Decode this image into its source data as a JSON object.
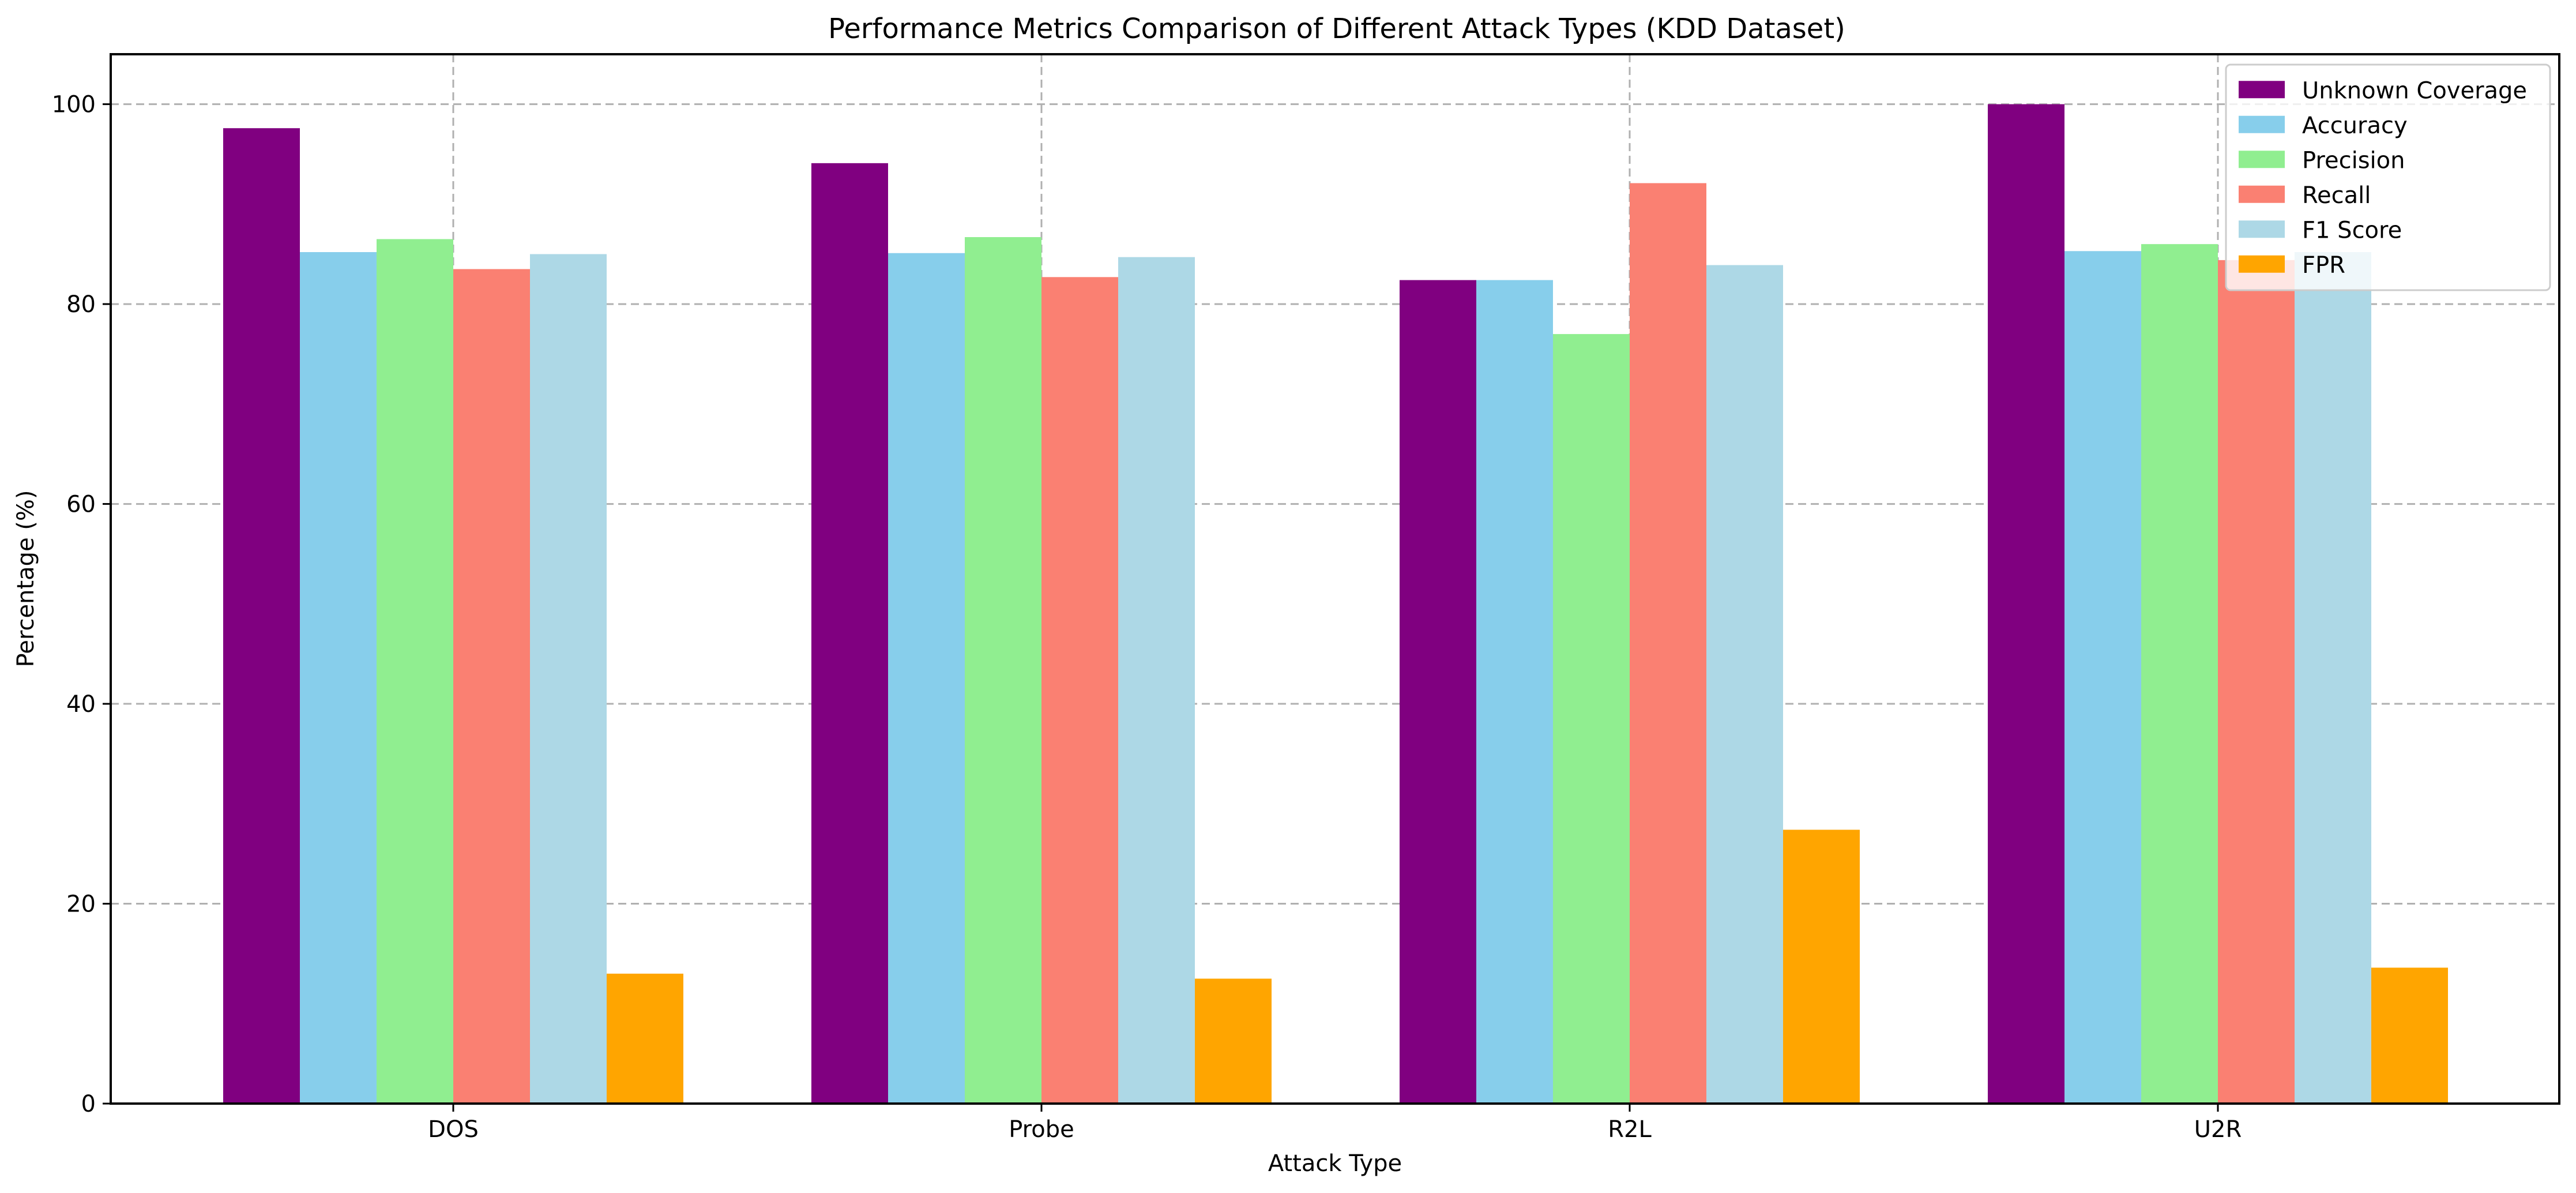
{
  "chart_data": {
    "type": "bar",
    "title": "Performance Metrics Comparison of Different Attack Types (KDD Dataset)",
    "xlabel": "Attack Type",
    "ylabel": "Percentage (%)",
    "categories": [
      "DOS",
      "Probe",
      "R2L",
      "U2R"
    ],
    "ylim": [
      0,
      105
    ],
    "yticks": [
      0,
      20,
      40,
      60,
      80,
      100
    ],
    "grid": true,
    "legend_position": "top-right",
    "series": [
      {
        "name": "Unknown Coverage",
        "color": "#800080",
        "values": [
          97.6,
          94.1,
          82.4,
          100.0
        ]
      },
      {
        "name": "Accuracy",
        "color": "#87ceeb",
        "values": [
          85.2,
          85.1,
          82.4,
          85.3
        ]
      },
      {
        "name": "Precision",
        "color": "#90ee90",
        "values": [
          86.5,
          86.7,
          77.0,
          86.0
        ]
      },
      {
        "name": "Recall",
        "color": "#fa8072",
        "values": [
          83.5,
          82.7,
          92.1,
          84.4
        ]
      },
      {
        "name": "F1 Score",
        "color": "#add8e6",
        "values": [
          85.0,
          84.7,
          83.9,
          85.2
        ]
      },
      {
        "name": "FPR",
        "color": "#ffa500",
        "values": [
          13.0,
          12.5,
          27.4,
          13.6
        ]
      }
    ]
  }
}
